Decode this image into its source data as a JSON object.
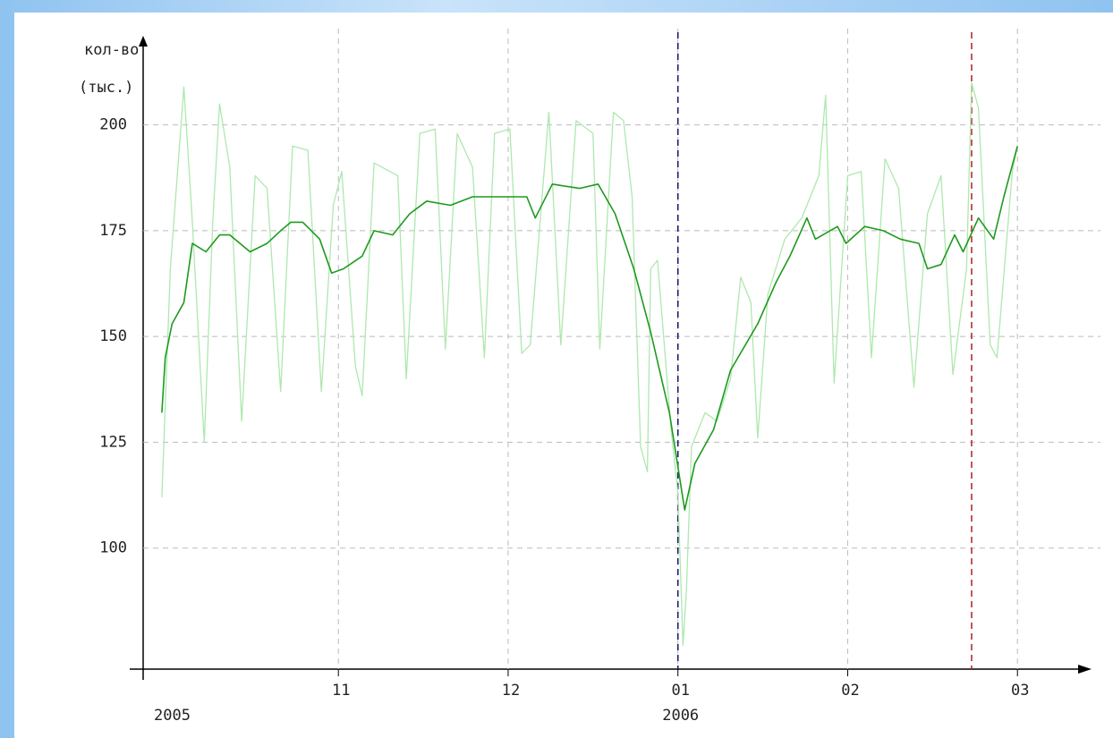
{
  "chart_data": {
    "type": "line",
    "y_label_lines": [
      "кол-во",
      "(тыс.)"
    ],
    "xlim": [
      9.85,
      15.41
    ],
    "ylim": [
      71.4,
      220
    ],
    "xticks": [
      {
        "value": 11,
        "label": "11"
      },
      {
        "value": 12,
        "label": "12"
      },
      {
        "value": 13,
        "label": "01"
      },
      {
        "value": 14,
        "label": "02"
      },
      {
        "value": 15,
        "label": "03"
      }
    ],
    "yticks": [
      100,
      125,
      150,
      175,
      200
    ],
    "year_labels": [
      {
        "x": 9.85,
        "label": "2005"
      },
      {
        "x": 13,
        "label": "2006"
      }
    ],
    "markers": [
      {
        "x": 13,
        "color": "#1a1a6e"
      },
      {
        "x": 14.73,
        "color": "#b03030"
      }
    ],
    "grid": true,
    "series": [
      {
        "color": "#aee8ae",
        "width": 1.3,
        "x": [
          9.96,
          10.01,
          10.09,
          10.14,
          10.21,
          10.26,
          10.3,
          10.36,
          10.43,
          10.51,
          10.58,
          10.66,
          10.73,
          10.82,
          10.9,
          10.97,
          11.02,
          11.1,
          11.14,
          11.21,
          11.35,
          11.4,
          11.48,
          11.57,
          11.63,
          11.7,
          11.79,
          11.86,
          11.92,
          12.01,
          12.08,
          12.13,
          12.24,
          12.31,
          12.4,
          12.5,
          12.54,
          12.62,
          12.68,
          12.73,
          12.78,
          12.82,
          12.84,
          12.88,
          12.96,
          13.0,
          13.03,
          13.05,
          13.08,
          13.16,
          13.23,
          13.31,
          13.37,
          13.43,
          13.47,
          13.53,
          13.63,
          13.73,
          13.83,
          13.87,
          13.92,
          14.0,
          14.08,
          14.14,
          14.22,
          14.3,
          14.39,
          14.47,
          14.55,
          14.62,
          14.7,
          14.73,
          14.77,
          14.84,
          14.88,
          14.97,
          15.0
        ],
        "values": [
          112,
          166,
          209,
          177,
          125,
          177,
          205,
          190,
          130,
          188,
          185,
          137,
          195,
          194,
          137,
          181,
          189,
          143,
          136,
          191,
          188,
          140,
          198,
          199,
          147,
          198,
          190,
          145,
          198,
          199,
          146,
          148,
          203,
          148,
          201,
          198,
          147,
          203,
          201,
          183,
          124,
          118,
          166,
          168,
          128,
          113,
          77,
          90,
          124,
          132,
          130,
          140,
          164,
          158,
          126,
          160,
          173,
          178,
          188,
          207,
          139,
          188,
          189,
          145,
          192,
          185,
          138,
          179,
          188,
          141,
          166,
          210,
          204,
          148,
          145,
          189,
          195
        ]
      },
      {
        "color": "#1e9a1e",
        "width": 1.6,
        "x": [
          9.96,
          9.98,
          10.02,
          10.09,
          10.14,
          10.22,
          10.3,
          10.36,
          10.48,
          10.58,
          10.66,
          10.72,
          10.79,
          10.89,
          10.96,
          11.03,
          11.14,
          11.21,
          11.32,
          11.42,
          11.52,
          11.66,
          11.79,
          11.95,
          12.11,
          12.16,
          12.26,
          12.42,
          12.53,
          12.63,
          12.74,
          12.84,
          12.95,
          13.04,
          13.1,
          13.21,
          13.31,
          13.47,
          13.58,
          13.66,
          13.76,
          13.81,
          13.94,
          13.99,
          14.1,
          14.21,
          14.31,
          14.42,
          14.47,
          14.55,
          14.63,
          14.68,
          14.77,
          14.86,
          14.92,
          15.0
        ],
        "values": [
          132,
          145,
          153,
          158,
          172,
          170,
          174,
          174,
          170,
          172,
          175,
          177,
          177,
          173,
          165,
          166,
          169,
          175,
          174,
          179,
          182,
          181,
          183,
          183,
          183,
          178,
          186,
          185,
          186,
          179,
          166,
          151,
          132,
          109,
          120,
          128,
          142,
          153,
          163,
          169,
          178,
          173,
          176,
          172,
          176,
          175,
          173,
          172,
          166,
          167,
          174,
          170,
          178,
          173,
          183,
          195
        ]
      }
    ]
  }
}
